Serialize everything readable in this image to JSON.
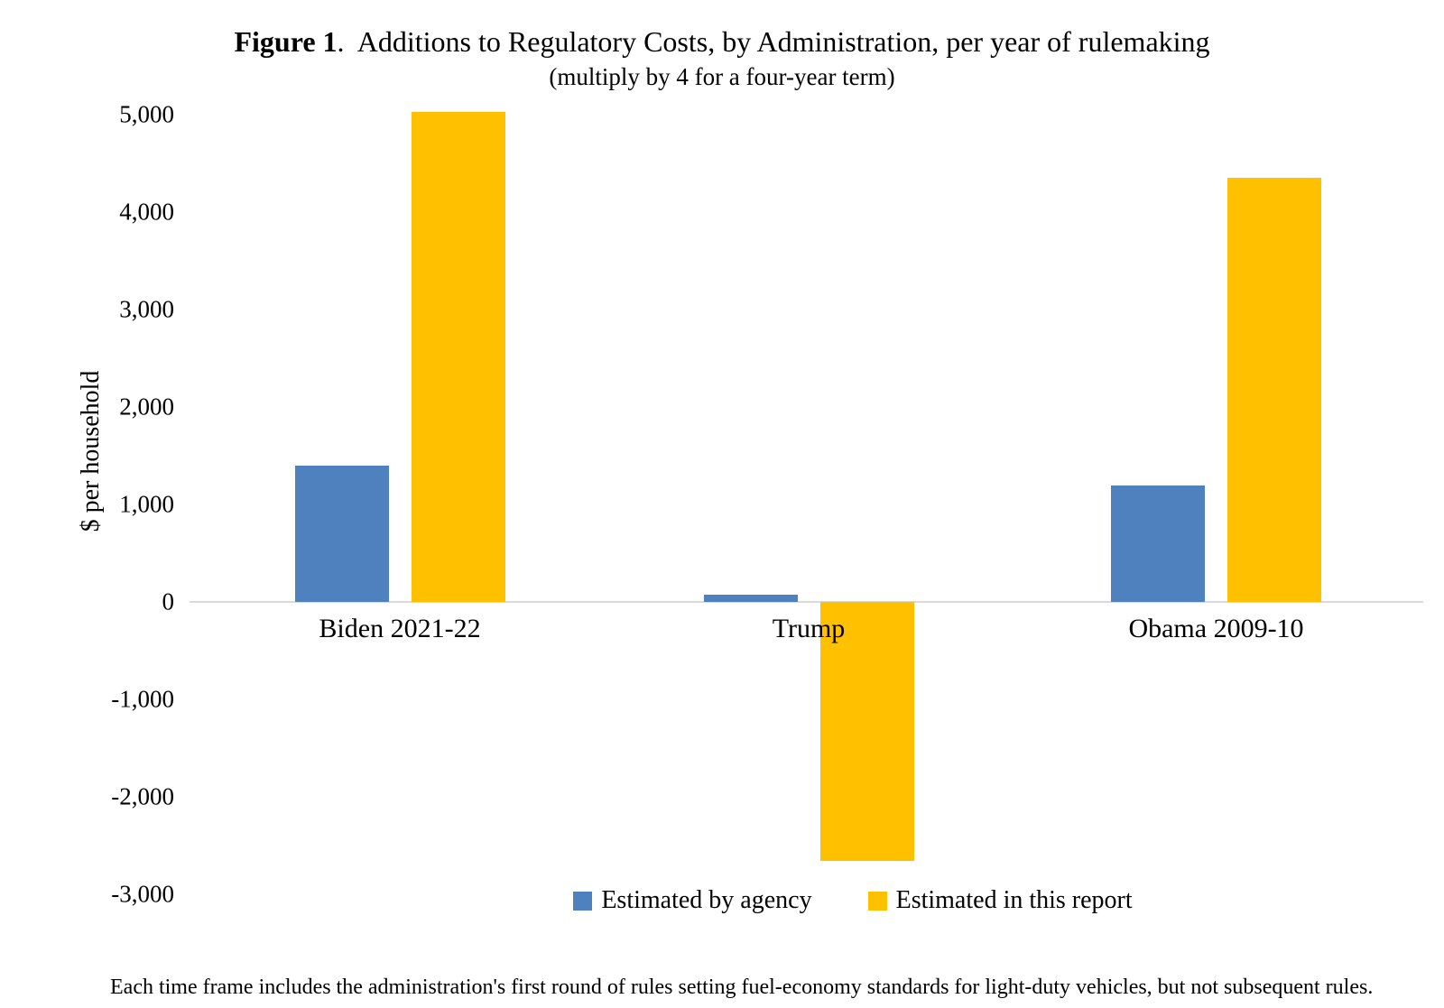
{
  "figure": {
    "title_bold": "Figure 1",
    "title_rest": ".  Additions to Regulatory Costs, by Administration, per year of rulemaking",
    "subtitle": "(multiply by 4 for a four-year term)"
  },
  "y_axis": {
    "label": "$ per household",
    "tick_labels": [
      "5,000",
      "4,000",
      "3,000",
      "2,000",
      "1,000",
      "0",
      "-1,000",
      "-2,000",
      "-3,000"
    ]
  },
  "legend": {
    "items": [
      {
        "label": "Estimated by agency",
        "color": "#4E81BD"
      },
      {
        "label": "Estimated in this report",
        "color": "#FFC000"
      }
    ]
  },
  "footnote": "Each time frame includes the administration's first round of rules setting fuel-economy standards for light-duty vehicles, but not subsequent rules.",
  "chart_data": {
    "type": "bar",
    "categories": [
      "Biden 2021-22",
      "Trump",
      "Obama 2009-10"
    ],
    "series": [
      {
        "name": "Estimated by agency",
        "color": "#4E81BD",
        "values": [
          1400,
          70,
          1190
        ]
      },
      {
        "name": "Estimated in this report",
        "color": "#FFC000",
        "values": [
          5030,
          -2660,
          4350
        ]
      }
    ],
    "title": "Figure 1. Additions to Regulatory Costs, by Administration, per year of rulemaking (multiply by 4 for a four-year term)",
    "xlabel": "",
    "ylabel": "$ per household",
    "ylim": [
      -3000,
      5000
    ],
    "ytick_step": 1000,
    "grid": false,
    "legend_position": "bottom",
    "baseline_color": "#D9D9D9"
  }
}
